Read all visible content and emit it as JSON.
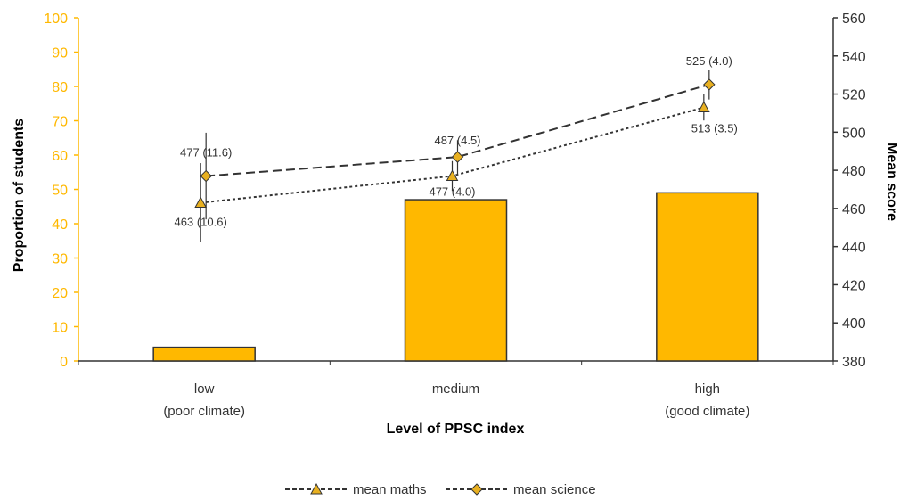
{
  "colors": {
    "bar_fill": "#FFB800",
    "bar_stroke": "#333333",
    "left_axis": "#FFB800",
    "right_axis": "#333333",
    "maths_line": "#333333",
    "science_line": "#333333",
    "marker_fill": "#E8B020"
  },
  "chart_data": {
    "type": "bar",
    "xlabel": "Level of PPSC index",
    "ylabel_left": "Proportion of students",
    "ylabel_right": "Mean score",
    "ylim_left": [
      0,
      100
    ],
    "yticks_left": [
      "0",
      "10",
      "20",
      "30",
      "40",
      "50",
      "60",
      "70",
      "80",
      "90",
      "100"
    ],
    "ylim_right": [
      380,
      560
    ],
    "yticks_right": [
      "380",
      "400",
      "420",
      "440",
      "460",
      "480",
      "500",
      "520",
      "540",
      "560"
    ],
    "categories": [
      {
        "line1": "low",
        "line2": "(poor climate)"
      },
      {
        "line1": "medium",
        "line2": ""
      },
      {
        "line1": "high",
        "line2": "(good climate)"
      }
    ],
    "bars": {
      "values": [
        4,
        47,
        49
      ]
    },
    "series": [
      {
        "name": "mean maths",
        "marker": "triangle",
        "values": [
          463,
          477,
          513
        ],
        "se": [
          10.6,
          4.0,
          3.5
        ],
        "labels": [
          "463 (10.6)",
          "477 (4.0)",
          "513 (3.5)"
        ]
      },
      {
        "name": "mean science",
        "marker": "diamond",
        "values": [
          477,
          487,
          525
        ],
        "se": [
          11.6,
          4.5,
          4.0
        ],
        "labels": [
          "477 (11.6)",
          "487 (4.5)",
          "525 (4.0)"
        ]
      }
    ],
    "legend_position": "bottom"
  }
}
